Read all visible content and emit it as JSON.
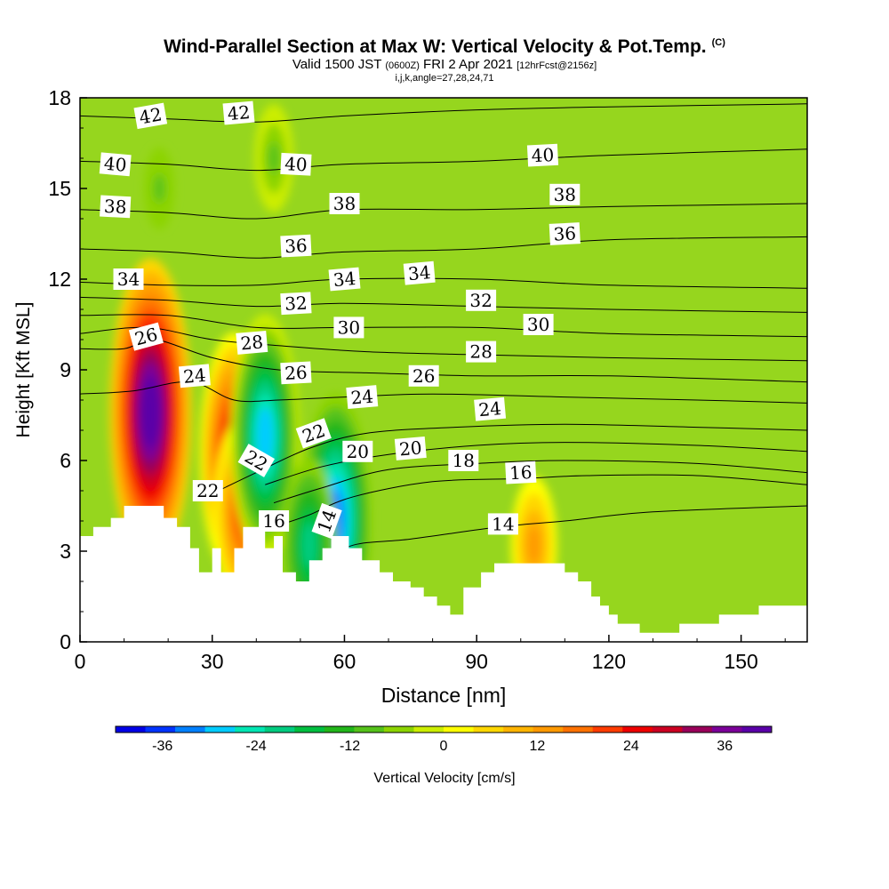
{
  "title": {
    "main": "Wind-Parallel Section at Max W: Vertical Velocity & Pot.Temp.",
    "copyright": "(C)",
    "valid_prefix": "Valid 1500 JST",
    "valid_utc": "(0600Z)",
    "valid_date": "FRI 2 Apr 2021",
    "forecast": "[12hrFcst@2156z]",
    "indices": "i,j,k,angle=27,28,24,71"
  },
  "colorbar": {
    "label": "Vertical Velocity [cm/s]",
    "ticks": [
      -36,
      -24,
      -12,
      0,
      12,
      24,
      36
    ],
    "range": [
      -42,
      42
    ],
    "colors": [
      "#0000e6",
      "#0033ff",
      "#0080ff",
      "#00ccff",
      "#00e6b3",
      "#00cc80",
      "#00bf40",
      "#22b61a",
      "#55c21a",
      "#8cd400",
      "#ccee00",
      "#ffff00",
      "#ffd700",
      "#ffb400",
      "#ff9900",
      "#ff7200",
      "#ff3c00",
      "#ee0000",
      "#cc0022",
      "#99005a",
      "#7b0099",
      "#5a00a8"
    ]
  },
  "chart_data": {
    "type": "heatmap",
    "title": "Wind-Parallel Section at Max W: Vertical Velocity & Pot.Temp.",
    "xlabel": "Distance [nm]",
    "ylabel": "Height [Kft MSL]",
    "xlim": [
      0,
      165
    ],
    "ylim": [
      0,
      18
    ],
    "xticks": [
      0,
      30,
      60,
      90,
      120,
      150
    ],
    "yticks": [
      0,
      3,
      6,
      9,
      12,
      15,
      18
    ],
    "field": "Vertical Velocity [cm/s]",
    "contour_field": "Potential Temperature",
    "updrafts": [
      {
        "x": 16,
        "y": 7.6,
        "w": 40
      },
      {
        "x": 35,
        "y": 6.2,
        "w": 30
      },
      {
        "x": 37,
        "y": 4.3,
        "w": 22
      },
      {
        "x": 103,
        "y": 3.2,
        "w": 14
      }
    ],
    "downdrafts": [
      {
        "x": 42,
        "y": 6.8,
        "w": -30
      },
      {
        "x": 58,
        "y": 4.0,
        "w": -32
      },
      {
        "x": 52,
        "y": 3.2,
        "w": -20
      },
      {
        "x": 44,
        "y": 16,
        "w": -10
      },
      {
        "x": 18,
        "y": 15,
        "w": -8
      }
    ],
    "terrain_nm_kft": [
      [
        0,
        3.5
      ],
      [
        3,
        3.5
      ],
      [
        3,
        3.8
      ],
      [
        7,
        3.8
      ],
      [
        7,
        4.1
      ],
      [
        10,
        4.1
      ],
      [
        10,
        4.5
      ],
      [
        19,
        4.5
      ],
      [
        19,
        4.1
      ],
      [
        22,
        4.1
      ],
      [
        22,
        3.8
      ],
      [
        25,
        3.8
      ],
      [
        25,
        3.1
      ],
      [
        27,
        3.1
      ],
      [
        27,
        2.3
      ],
      [
        30,
        2.3
      ],
      [
        30,
        3.1
      ],
      [
        32,
        3.1
      ],
      [
        32,
        2.3
      ],
      [
        35,
        2.3
      ],
      [
        35,
        3.1
      ],
      [
        37,
        3.1
      ],
      [
        37,
        3.8
      ],
      [
        42,
        3.8
      ],
      [
        42,
        3.1
      ],
      [
        44,
        3.1
      ],
      [
        44,
        3.5
      ],
      [
        46,
        3.5
      ],
      [
        46,
        2.3
      ],
      [
        49,
        2.3
      ],
      [
        49,
        2.0
      ],
      [
        52,
        2.0
      ],
      [
        52,
        2.7
      ],
      [
        55,
        2.7
      ],
      [
        55,
        3.1
      ],
      [
        57,
        3.1
      ],
      [
        57,
        3.5
      ],
      [
        61,
        3.5
      ],
      [
        61,
        3.1
      ],
      [
        64,
        3.1
      ],
      [
        64,
        2.7
      ],
      [
        68,
        2.7
      ],
      [
        68,
        2.3
      ],
      [
        71,
        2.3
      ],
      [
        71,
        2.0
      ],
      [
        75,
        2.0
      ],
      [
        75,
        1.8
      ],
      [
        78,
        1.8
      ],
      [
        78,
        1.5
      ],
      [
        81,
        1.5
      ],
      [
        81,
        1.2
      ],
      [
        84,
        1.2
      ],
      [
        84,
        0.9
      ],
      [
        87,
        0.9
      ],
      [
        87,
        1.8
      ],
      [
        91,
        1.8
      ],
      [
        91,
        2.3
      ],
      [
        94,
        2.3
      ],
      [
        94,
        2.6
      ],
      [
        110,
        2.6
      ],
      [
        110,
        2.3
      ],
      [
        113,
        2.3
      ],
      [
        113,
        2.0
      ],
      [
        116,
        2.0
      ],
      [
        116,
        1.5
      ],
      [
        118,
        1.5
      ],
      [
        118,
        1.2
      ],
      [
        120,
        1.2
      ],
      [
        120,
        0.9
      ],
      [
        122,
        0.9
      ],
      [
        122,
        0.6
      ],
      [
        127,
        0.6
      ],
      [
        127,
        0.3
      ],
      [
        136,
        0.3
      ],
      [
        136,
        0.6
      ],
      [
        145,
        0.6
      ],
      [
        145,
        0.9
      ],
      [
        154,
        0.9
      ],
      [
        154,
        1.2
      ],
      [
        165,
        1.2
      ]
    ],
    "isentropes": [
      {
        "theta": 14,
        "pts": [
          [
            55,
            2.6
          ],
          [
            62,
            3.2
          ],
          [
            75,
            3.4
          ],
          [
            95,
            3.8
          ],
          [
            110,
            4.0
          ],
          [
            130,
            4.3
          ],
          [
            165,
            4.5
          ]
        ]
      },
      {
        "theta": 16,
        "pts": [
          [
            46,
            3.9
          ],
          [
            52,
            4.2
          ],
          [
            62,
            4.8
          ],
          [
            80,
            5.3
          ],
          [
            100,
            5.4
          ],
          [
            115,
            5.5
          ],
          [
            140,
            5.5
          ],
          [
            165,
            5.2
          ]
        ]
      },
      {
        "theta": 18,
        "pts": [
          [
            44,
            4.6
          ],
          [
            55,
            5.1
          ],
          [
            70,
            5.7
          ],
          [
            90,
            5.9
          ],
          [
            110,
            6.0
          ],
          [
            140,
            5.9
          ],
          [
            165,
            5.6
          ]
        ]
      },
      {
        "theta": 20,
        "pts": [
          [
            42,
            5.2
          ],
          [
            55,
            5.8
          ],
          [
            70,
            6.2
          ],
          [
            90,
            6.5
          ],
          [
            110,
            6.6
          ],
          [
            140,
            6.5
          ],
          [
            165,
            6.3
          ]
        ]
      },
      {
        "theta": 22,
        "pts": [
          [
            30,
            4.9
          ],
          [
            40,
            5.6
          ],
          [
            52,
            6.4
          ],
          [
            65,
            6.9
          ],
          [
            85,
            7.1
          ],
          [
            110,
            7.2
          ],
          [
            140,
            7.1
          ],
          [
            165,
            7.0
          ]
        ]
      },
      {
        "theta": 24,
        "pts": [
          [
            0,
            8.2
          ],
          [
            12,
            8.3
          ],
          [
            25,
            8.6
          ],
          [
            35,
            8.0
          ],
          [
            45,
            8.0
          ],
          [
            60,
            8.1
          ],
          [
            80,
            8.2
          ],
          [
            110,
            8.1
          ],
          [
            140,
            8.0
          ],
          [
            165,
            7.9
          ]
        ]
      },
      {
        "theta": 26,
        "pts": [
          [
            0,
            9.7
          ],
          [
            10,
            9.7
          ],
          [
            17,
            10.0
          ],
          [
            30,
            9.4
          ],
          [
            45,
            9.0
          ],
          [
            65,
            8.9
          ],
          [
            90,
            8.8
          ],
          [
            120,
            8.8
          ],
          [
            165,
            8.6
          ]
        ]
      },
      {
        "theta": 28,
        "pts": [
          [
            0,
            10.2
          ],
          [
            15,
            10.4
          ],
          [
            30,
            10.0
          ],
          [
            45,
            9.8
          ],
          [
            65,
            9.6
          ],
          [
            90,
            9.5
          ],
          [
            120,
            9.4
          ],
          [
            165,
            9.3
          ]
        ]
      },
      {
        "theta": 30,
        "pts": [
          [
            0,
            10.8
          ],
          [
            20,
            10.8
          ],
          [
            40,
            10.4
          ],
          [
            60,
            10.4
          ],
          [
            90,
            10.4
          ],
          [
            120,
            10.2
          ],
          [
            165,
            10.1
          ]
        ]
      },
      {
        "theta": 32,
        "pts": [
          [
            0,
            11.4
          ],
          [
            20,
            11.3
          ],
          [
            40,
            11.1
          ],
          [
            60,
            11.2
          ],
          [
            90,
            11.1
          ],
          [
            120,
            11.0
          ],
          [
            165,
            10.9
          ]
        ]
      },
      {
        "theta": 34,
        "pts": [
          [
            0,
            11.9
          ],
          [
            20,
            11.8
          ],
          [
            40,
            11.8
          ],
          [
            60,
            12.0
          ],
          [
            90,
            12.0
          ],
          [
            120,
            11.8
          ],
          [
            165,
            11.7
          ]
        ]
      },
      {
        "theta": 36,
        "pts": [
          [
            0,
            13.0
          ],
          [
            20,
            12.9
          ],
          [
            40,
            12.7
          ],
          [
            60,
            12.9
          ],
          [
            90,
            13.0
          ],
          [
            120,
            13.3
          ],
          [
            165,
            13.4
          ]
        ]
      },
      {
        "theta": 38,
        "pts": [
          [
            0,
            14.3
          ],
          [
            20,
            14.2
          ],
          [
            40,
            14.0
          ],
          [
            60,
            14.3
          ],
          [
            90,
            14.3
          ],
          [
            120,
            14.4
          ],
          [
            165,
            14.5
          ]
        ]
      },
      {
        "theta": 40,
        "pts": [
          [
            0,
            15.9
          ],
          [
            20,
            15.8
          ],
          [
            40,
            15.6
          ],
          [
            60,
            15.8
          ],
          [
            90,
            15.9
          ],
          [
            120,
            16.1
          ],
          [
            165,
            16.3
          ]
        ]
      },
      {
        "theta": 42,
        "pts": [
          [
            0,
            17.4
          ],
          [
            20,
            17.3
          ],
          [
            40,
            17.2
          ],
          [
            60,
            17.4
          ],
          [
            90,
            17.6
          ],
          [
            120,
            17.7
          ],
          [
            165,
            17.8
          ]
        ]
      }
    ],
    "contour_labels": [
      {
        "text": "42",
        "x": 16,
        "y": 17.4,
        "rot": -10
      },
      {
        "text": "42",
        "x": 36,
        "y": 17.5,
        "rot": -5
      },
      {
        "text": "40",
        "x": 8,
        "y": 15.8,
        "rot": 5
      },
      {
        "text": "40",
        "x": 49,
        "y": 15.8,
        "rot": 3
      },
      {
        "text": "40",
        "x": 105,
        "y": 16.1,
        "rot": -3
      },
      {
        "text": "38",
        "x": 8,
        "y": 14.4,
        "rot": 3
      },
      {
        "text": "38",
        "x": 60,
        "y": 14.5,
        "rot": 0
      },
      {
        "text": "38",
        "x": 110,
        "y": 14.8,
        "rot": 0
      },
      {
        "text": "36",
        "x": 49,
        "y": 13.1,
        "rot": -3
      },
      {
        "text": "36",
        "x": 110,
        "y": 13.5,
        "rot": -3
      },
      {
        "text": "34",
        "x": 11,
        "y": 12.0,
        "rot": 0
      },
      {
        "text": "34",
        "x": 60,
        "y": 12.0,
        "rot": -5
      },
      {
        "text": "34",
        "x": 77,
        "y": 12.2,
        "rot": -5
      },
      {
        "text": "32",
        "x": 49,
        "y": 11.2,
        "rot": -3
      },
      {
        "text": "32",
        "x": 91,
        "y": 11.3,
        "rot": 0
      },
      {
        "text": "30",
        "x": 61,
        "y": 10.4,
        "rot": 0
      },
      {
        "text": "30",
        "x": 104,
        "y": 10.5,
        "rot": 0
      },
      {
        "text": "28",
        "x": 39,
        "y": 9.9,
        "rot": -5
      },
      {
        "text": "28",
        "x": 91,
        "y": 9.6,
        "rot": 0
      },
      {
        "text": "26",
        "x": 15,
        "y": 10.1,
        "rot": -15
      },
      {
        "text": "26",
        "x": 49,
        "y": 8.9,
        "rot": -3
      },
      {
        "text": "26",
        "x": 78,
        "y": 8.8,
        "rot": 0
      },
      {
        "text": "24",
        "x": 26,
        "y": 8.8,
        "rot": -5
      },
      {
        "text": "24",
        "x": 64,
        "y": 8.1,
        "rot": -5
      },
      {
        "text": "24",
        "x": 93,
        "y": 7.7,
        "rot": -5
      },
      {
        "text": "22",
        "x": 29,
        "y": 5.0,
        "rot": 0
      },
      {
        "text": "22",
        "x": 40,
        "y": 6.0,
        "rot": 30
      },
      {
        "text": "22",
        "x": 53,
        "y": 6.9,
        "rot": -20
      },
      {
        "text": "20",
        "x": 63,
        "y": 6.3,
        "rot": 0
      },
      {
        "text": "20",
        "x": 75,
        "y": 6.4,
        "rot": -5
      },
      {
        "text": "18",
        "x": 87,
        "y": 6.0,
        "rot": 0
      },
      {
        "text": "16",
        "x": 44,
        "y": 4.0,
        "rot": 0
      },
      {
        "text": "16",
        "x": 100,
        "y": 5.6,
        "rot": -3
      },
      {
        "text": "14",
        "x": 56,
        "y": 4.0,
        "rot": -70
      },
      {
        "text": "14",
        "x": 96,
        "y": 3.9,
        "rot": 0
      }
    ]
  }
}
